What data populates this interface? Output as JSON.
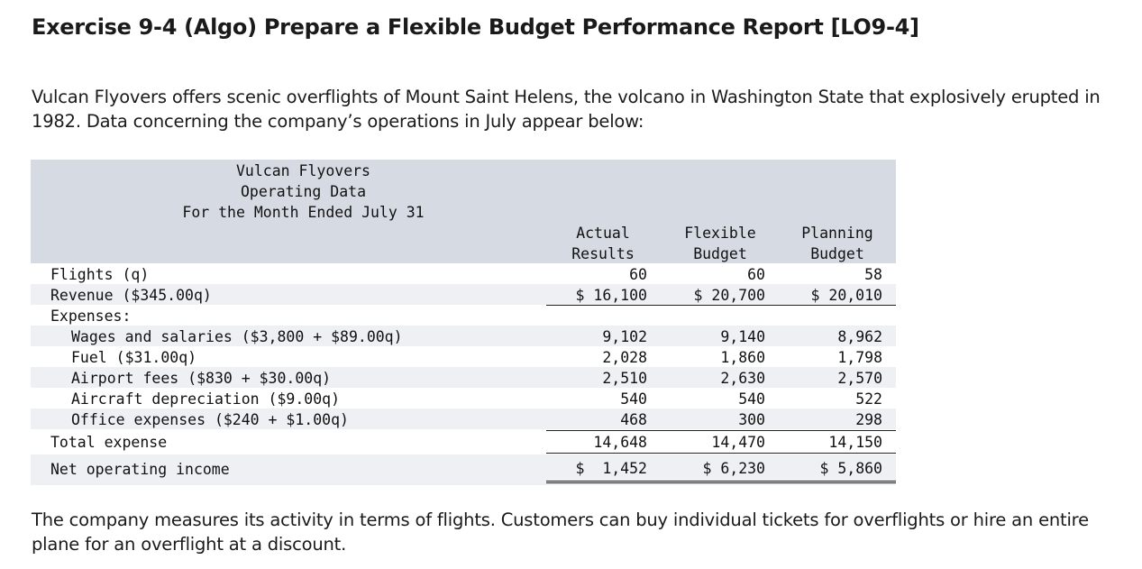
{
  "page": {
    "title": "Exercise 9-4 (Algo) Prepare a Flexible Budget Performance Report [LO9-4]",
    "intro": "Vulcan Flyovers offers scenic overflights of Mount Saint Helens, the volcano in Washington State that explosively erupted in 1982. Data concerning the company’s operations in July appear below:",
    "outro": "The company measures its activity in terms of flights. Customers can buy individual tickets for overflights or hire an entire plane for an overflight at a discount."
  },
  "table": {
    "header": [
      "Vulcan Flyovers",
      "Operating Data",
      "For the Month Ended July 31"
    ],
    "columns": [
      [
        "Actual",
        "Results"
      ],
      [
        "Flexible",
        "Budget"
      ],
      [
        "Planning",
        "Budget"
      ]
    ],
    "rows": [
      {
        "label": "Flights (q)",
        "values": [
          "60",
          "60",
          "58"
        ]
      },
      {
        "label": "Revenue ($345.00q)",
        "values": [
          "$ 16,100",
          "$ 20,700",
          "$ 20,010"
        ]
      },
      {
        "label": "Expenses:",
        "values": [
          "",
          "",
          ""
        ]
      },
      {
        "label": "Wages and salaries ($3,800 + $89.00q)",
        "values": [
          "9,102",
          "9,140",
          "8,962"
        ]
      },
      {
        "label": "Fuel ($31.00q)",
        "values": [
          "2,028",
          "1,860",
          "1,798"
        ]
      },
      {
        "label": "Airport fees ($830 + $30.00q)",
        "values": [
          "2,510",
          "2,630",
          "2,570"
        ]
      },
      {
        "label": "Aircraft depreciation ($9.00q)",
        "values": [
          "540",
          "540",
          "522"
        ]
      },
      {
        "label": "Office expenses ($240 + $1.00q)",
        "values": [
          "468",
          "300",
          "298"
        ]
      },
      {
        "label": "Total expense",
        "values": [
          "14,648",
          "14,470",
          "14,150"
        ]
      },
      {
        "label": "Net operating income",
        "values": [
          "$  1,452",
          "$ 6,230",
          "$ 5,860"
        ]
      }
    ]
  }
}
